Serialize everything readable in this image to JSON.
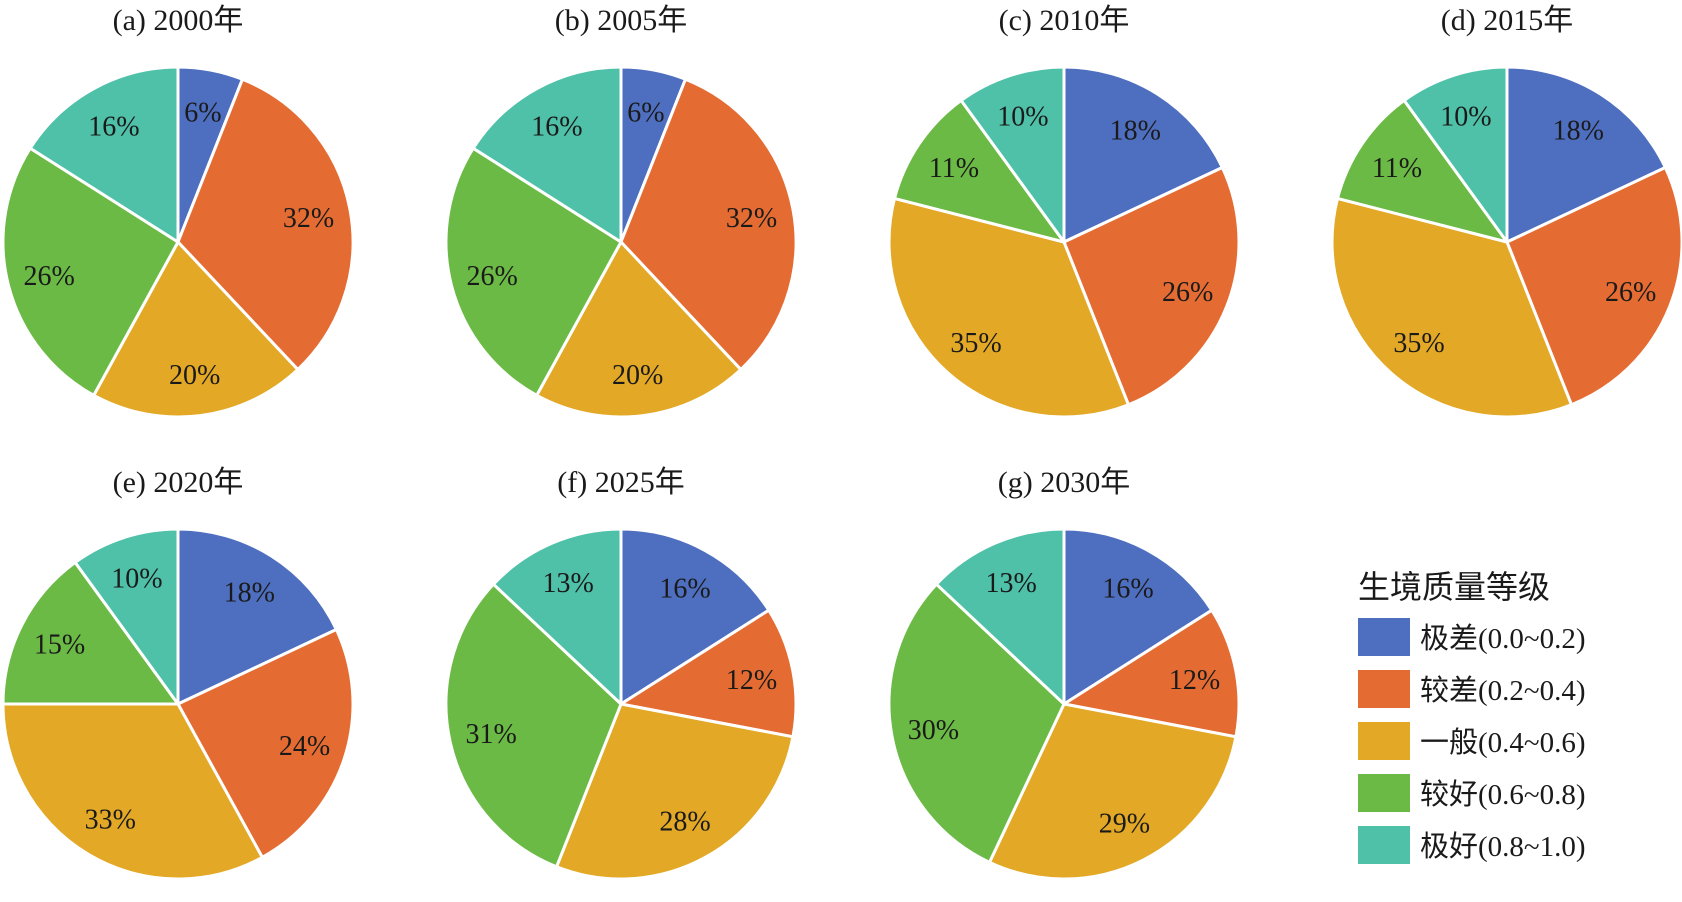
{
  "legend": {
    "title": "生境质量等级",
    "items": [
      {
        "label": "极差(0.0~0.2)",
        "color": "#4E6EBF"
      },
      {
        "label": "较差(0.2~0.4)",
        "color": "#E46C33"
      },
      {
        "label": "一般(0.4~0.6)",
        "color": "#E2A826"
      },
      {
        "label": "较好(0.6~0.8)",
        "color": "#6BBA45"
      },
      {
        "label": "极好(0.8~1.0)",
        "color": "#4EC1A8"
      }
    ],
    "placement": "bottom-right"
  },
  "chart_data": [
    {
      "type": "pie",
      "title": "(a) 2000年",
      "categories": [
        "极差(0.0~0.2)",
        "较差(0.2~0.4)",
        "一般(0.4~0.6)",
        "较好(0.6~0.8)",
        "极好(0.8~1.0)"
      ],
      "values": [
        6,
        32,
        20,
        26,
        16
      ],
      "labels": [
        "6%",
        "32%",
        "20%",
        "26%",
        "16%"
      ]
    },
    {
      "type": "pie",
      "title": "(b) 2005年",
      "categories": [
        "极差(0.0~0.2)",
        "较差(0.2~0.4)",
        "一般(0.4~0.6)",
        "较好(0.6~0.8)",
        "极好(0.8~1.0)"
      ],
      "values": [
        6,
        32,
        20,
        26,
        16
      ],
      "labels": [
        "6%",
        "32%",
        "20%",
        "26%",
        "16%"
      ]
    },
    {
      "type": "pie",
      "title": "(c) 2010年",
      "categories": [
        "极差(0.0~0.2)",
        "较差(0.2~0.4)",
        "一般(0.4~0.6)",
        "较好(0.6~0.8)",
        "极好(0.8~1.0)"
      ],
      "values": [
        18,
        26,
        35,
        11,
        10
      ],
      "labels": [
        "18%",
        "26%",
        "35%",
        "11%",
        "10%"
      ]
    },
    {
      "type": "pie",
      "title": "(d) 2015年",
      "categories": [
        "极差(0.0~0.2)",
        "较差(0.2~0.4)",
        "一般(0.4~0.6)",
        "较好(0.6~0.8)",
        "极好(0.8~1.0)"
      ],
      "values": [
        18,
        26,
        35,
        11,
        10
      ],
      "labels": [
        "18%",
        "26%",
        "35%",
        "11%",
        "10%"
      ]
    },
    {
      "type": "pie",
      "title": "(e) 2020年",
      "categories": [
        "极差(0.0~0.2)",
        "较差(0.2~0.4)",
        "一般(0.4~0.6)",
        "较好(0.6~0.8)",
        "极好(0.8~1.0)"
      ],
      "values": [
        18,
        24,
        33,
        15,
        10
      ],
      "labels": [
        "18%",
        "24%",
        "33%",
        "15%",
        "10%"
      ]
    },
    {
      "type": "pie",
      "title": "(f) 2025年",
      "categories": [
        "极差(0.0~0.2)",
        "较差(0.2~0.4)",
        "一般(0.4~0.6)",
        "较好(0.6~0.8)",
        "极好(0.8~1.0)"
      ],
      "values": [
        16,
        12,
        28,
        31,
        13
      ],
      "labels": [
        "16%",
        "12%",
        "28%",
        "31%",
        "13%"
      ]
    },
    {
      "type": "pie",
      "title": "(g) 2030年",
      "categories": [
        "极差(0.0~0.2)",
        "较差(0.2~0.4)",
        "一般(0.4~0.6)",
        "较好(0.6~0.8)",
        "极好(0.8~1.0)"
      ],
      "values": [
        16,
        12,
        29,
        30,
        13
      ],
      "labels": [
        "16%",
        "12%",
        "29%",
        "30%",
        "13%"
      ]
    }
  ]
}
